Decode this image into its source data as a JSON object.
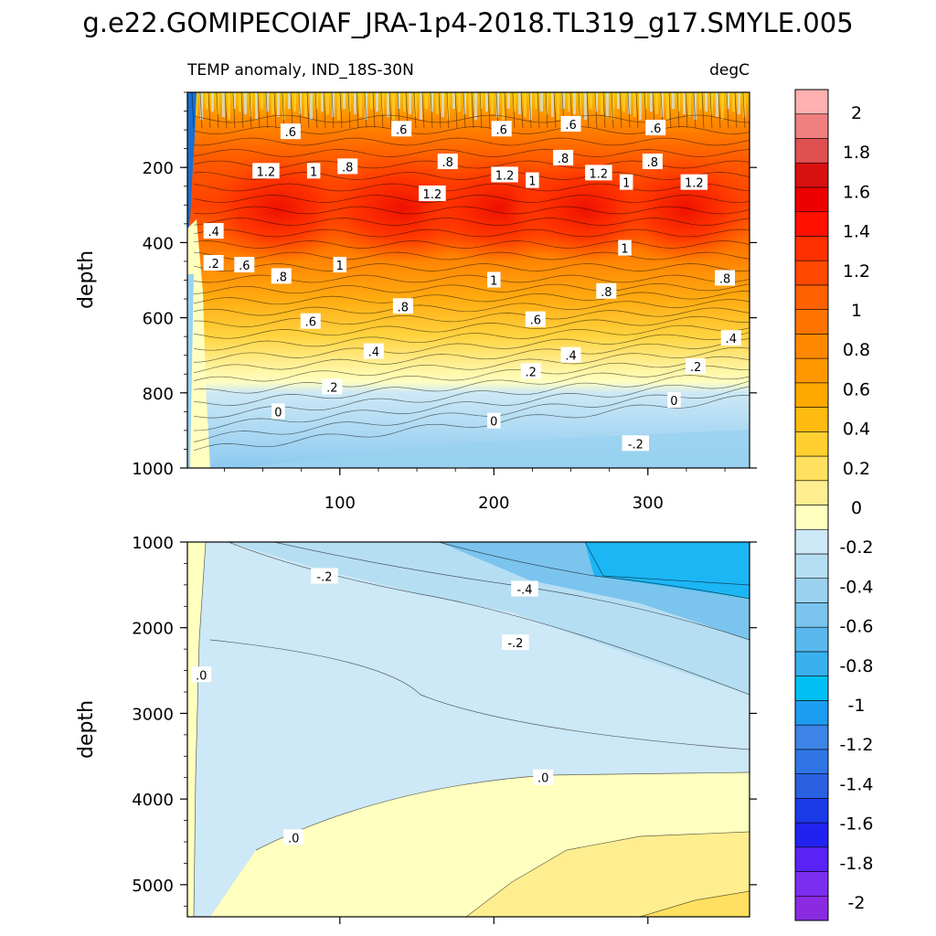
{
  "chart_data": {
    "type": "contour",
    "title": "g.e22.GOMIPECOIAF_JRA-1p4-2018.TL319_g17.SMYLE.005",
    "subtitle_left": "TEMP anomaly, IND_18S-30N",
    "subtitle_right": "degC",
    "xrange": [
      1,
      366
    ],
    "xticks": [
      100,
      200,
      300
    ],
    "upper_panel": {
      "ylabel": "depth",
      "yrange": [
        0,
        1000
      ],
      "yticks": [
        200,
        400,
        600,
        800,
        1000
      ],
      "contour_labels": [
        {
          "text": ".6",
          "x": 68,
          "y": 105
        },
        {
          "text": ".6",
          "x": 140,
          "y": 98
        },
        {
          "text": ".6",
          "x": 205,
          "y": 98
        },
        {
          "text": ".6",
          "x": 250,
          "y": 85
        },
        {
          "text": ".6",
          "x": 305,
          "y": 95
        },
        {
          "text": "1.2",
          "x": 52,
          "y": 210
        },
        {
          "text": "1",
          "x": 83,
          "y": 210
        },
        {
          "text": ".8",
          "x": 105,
          "y": 198
        },
        {
          "text": ".8",
          "x": 170,
          "y": 185
        },
        {
          "text": "1.2",
          "x": 160,
          "y": 270
        },
        {
          "text": "1.2",
          "x": 207,
          "y": 220
        },
        {
          "text": "1",
          "x": 225,
          "y": 235
        },
        {
          "text": ".8",
          "x": 245,
          "y": 175
        },
        {
          "text": "1.2",
          "x": 268,
          "y": 215
        },
        {
          "text": "1",
          "x": 286,
          "y": 240
        },
        {
          "text": ".8",
          "x": 303,
          "y": 185
        },
        {
          "text": "1.2",
          "x": 330,
          "y": 240
        },
        {
          "text": ".4",
          "x": 18,
          "y": 370
        },
        {
          "text": ".2",
          "x": 18,
          "y": 455
        },
        {
          "text": ".6",
          "x": 38,
          "y": 460
        },
        {
          "text": ".8",
          "x": 62,
          "y": 490
        },
        {
          "text": "1",
          "x": 100,
          "y": 460
        },
        {
          "text": "1",
          "x": 285,
          "y": 415
        },
        {
          "text": "1",
          "x": 200,
          "y": 500
        },
        {
          "text": ".8",
          "x": 141,
          "y": 570
        },
        {
          "text": ".8",
          "x": 273,
          "y": 530
        },
        {
          "text": ".8",
          "x": 350,
          "y": 495
        },
        {
          "text": ".6",
          "x": 81,
          "y": 610
        },
        {
          "text": ".6",
          "x": 227,
          "y": 605
        },
        {
          "text": ".4",
          "x": 122,
          "y": 690
        },
        {
          "text": ".4",
          "x": 250,
          "y": 700
        },
        {
          "text": ".4",
          "x": 354,
          "y": 655
        },
        {
          "text": ".2",
          "x": 95,
          "y": 785
        },
        {
          "text": ".2",
          "x": 224,
          "y": 743
        },
        {
          "text": ".2",
          "x": 331,
          "y": 730
        },
        {
          "text": "0",
          "x": 60,
          "y": 850
        },
        {
          "text": "0",
          "x": 200,
          "y": 875
        },
        {
          "text": "0",
          "x": 317,
          "y": 820
        },
        {
          "text": "-.2",
          "x": 292,
          "y": 935
        },
        {
          "text": "-.2",
          "x": 175,
          "y": 1020
        }
      ]
    },
    "lower_panel": {
      "ylabel": "depth",
      "yrange": [
        1000,
        5375
      ],
      "yticks": [
        1000,
        2000,
        3000,
        4000,
        5000
      ],
      "contour_labels": [
        {
          "text": "-.2",
          "x": 90,
          "y": 1400
        },
        {
          "text": "-.4",
          "x": 220,
          "y": 1550
        },
        {
          "text": "-.2",
          "x": 214,
          "y": 2175
        },
        {
          "text": ".0",
          "x": 10,
          "y": 2550
        },
        {
          "text": ".0",
          "x": 232,
          "y": 3750
        },
        {
          "text": ".0",
          "x": 70,
          "y": 4450
        }
      ]
    },
    "colorbar": {
      "levels": [
        -2,
        -1.8,
        -1.6,
        -1.4,
        -1.2,
        -1,
        -0.8,
        -0.6,
        -0.4,
        -0.2,
        0,
        0.2,
        0.4,
        0.6,
        0.8,
        1,
        1.2,
        1.4,
        1.6,
        1.8,
        2
      ],
      "labels": [
        "-2",
        "-1.8",
        "-1.6",
        "-1.4",
        "-1.2",
        "-1",
        "-0.8",
        "-0.6",
        "-0.4",
        "-0.2",
        "0",
        "0.2",
        "0.4",
        "0.6",
        "0.8",
        "1",
        "1.2",
        "1.4",
        "1.6",
        "1.8",
        "2"
      ],
      "colors_bottom_to_top": [
        "#8a2be2",
        "#7a2ef0",
        "#5a22f5",
        "#2222f0",
        "#1a3ae8",
        "#2860e0",
        "#3075e6",
        "#3c85e6",
        "#1c9df0",
        "#00c0f4",
        "#3ab0ee",
        "#5ab8ee",
        "#7ac4ee",
        "#9ad2f0",
        "#b6def2",
        "#cde8f6",
        "#ffffc0",
        "#ffee90",
        "#ffe060",
        "#ffd030",
        "#ffbb10",
        "#ffa800",
        "#ff9800",
        "#ff8800",
        "#ff7400",
        "#ff6000",
        "#ff4800",
        "#ff3000",
        "#ff1000",
        "#ee0000",
        "#d81010",
        "#e05050",
        "#f08080",
        "#ffb0b0"
      ]
    }
  }
}
